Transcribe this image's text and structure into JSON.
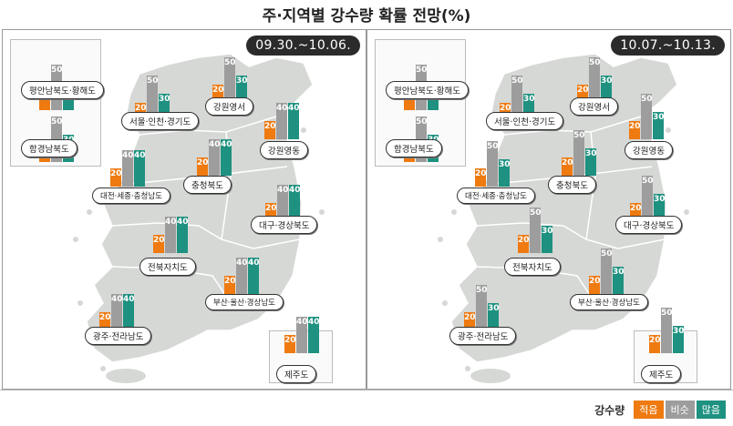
{
  "title": "주·지역별 강수량 확률 전망(%)",
  "legend": {
    "title": "강수량",
    "items": [
      {
        "label": "적음",
        "color": "#ee7a10"
      },
      {
        "label": "비슷",
        "color": "#9d9d9d"
      },
      {
        "label": "많음",
        "color": "#1e9180"
      }
    ]
  },
  "panels": [
    {
      "date": "09.30.~10.06.",
      "regions": [
        {
          "name": "평안남북도·황해도",
          "low": 20,
          "mid": 50,
          "high": 30
        },
        {
          "name": "함경남북도",
          "low": 20,
          "mid": 50,
          "high": 30
        },
        {
          "name": "서울·인천·경기도",
          "low": 20,
          "mid": 50,
          "high": 30
        },
        {
          "name": "강원영서",
          "low": 20,
          "mid": 50,
          "high": 30
        },
        {
          "name": "강원영동",
          "low": 20,
          "mid": 40,
          "high": 40
        },
        {
          "name": "대전·세종·충청남도",
          "low": 20,
          "mid": 40,
          "high": 40
        },
        {
          "name": "충청북도",
          "low": 20,
          "mid": 40,
          "high": 40
        },
        {
          "name": "대구·경상북도",
          "low": 20,
          "mid": 40,
          "high": 40
        },
        {
          "name": "전북자치도",
          "low": 20,
          "mid": 40,
          "high": 40
        },
        {
          "name": "부산·울산·경상남도",
          "low": 20,
          "mid": 40,
          "high": 40
        },
        {
          "name": "광주·전라남도",
          "low": 20,
          "mid": 40,
          "high": 40
        },
        {
          "name": "제주도",
          "low": 20,
          "mid": 40,
          "high": 40
        }
      ]
    },
    {
      "date": "10.07.~10.13.",
      "regions": [
        {
          "name": "평안남북도·황해도",
          "low": 20,
          "mid": 50,
          "high": 30
        },
        {
          "name": "함경남북도",
          "low": 20,
          "mid": 50,
          "high": 30
        },
        {
          "name": "서울·인천·경기도",
          "low": 20,
          "mid": 50,
          "high": 30
        },
        {
          "name": "강원영서",
          "low": 20,
          "mid": 50,
          "high": 30
        },
        {
          "name": "강원영동",
          "low": 20,
          "mid": 50,
          "high": 30
        },
        {
          "name": "대전·세종·충청남도",
          "low": 20,
          "mid": 50,
          "high": 30
        },
        {
          "name": "충청북도",
          "low": 20,
          "mid": 50,
          "high": 30
        },
        {
          "name": "대구·경상북도",
          "low": 20,
          "mid": 50,
          "high": 30
        },
        {
          "name": "전북자치도",
          "low": 20,
          "mid": 50,
          "high": 30
        },
        {
          "name": "부산·울산·경상남도",
          "low": 20,
          "mid": 50,
          "high": 30
        },
        {
          "name": "광주·전라남도",
          "low": 20,
          "mid": 50,
          "high": 30
        },
        {
          "name": "제주도",
          "low": 20,
          "mid": 50,
          "high": 30
        }
      ]
    }
  ]
}
